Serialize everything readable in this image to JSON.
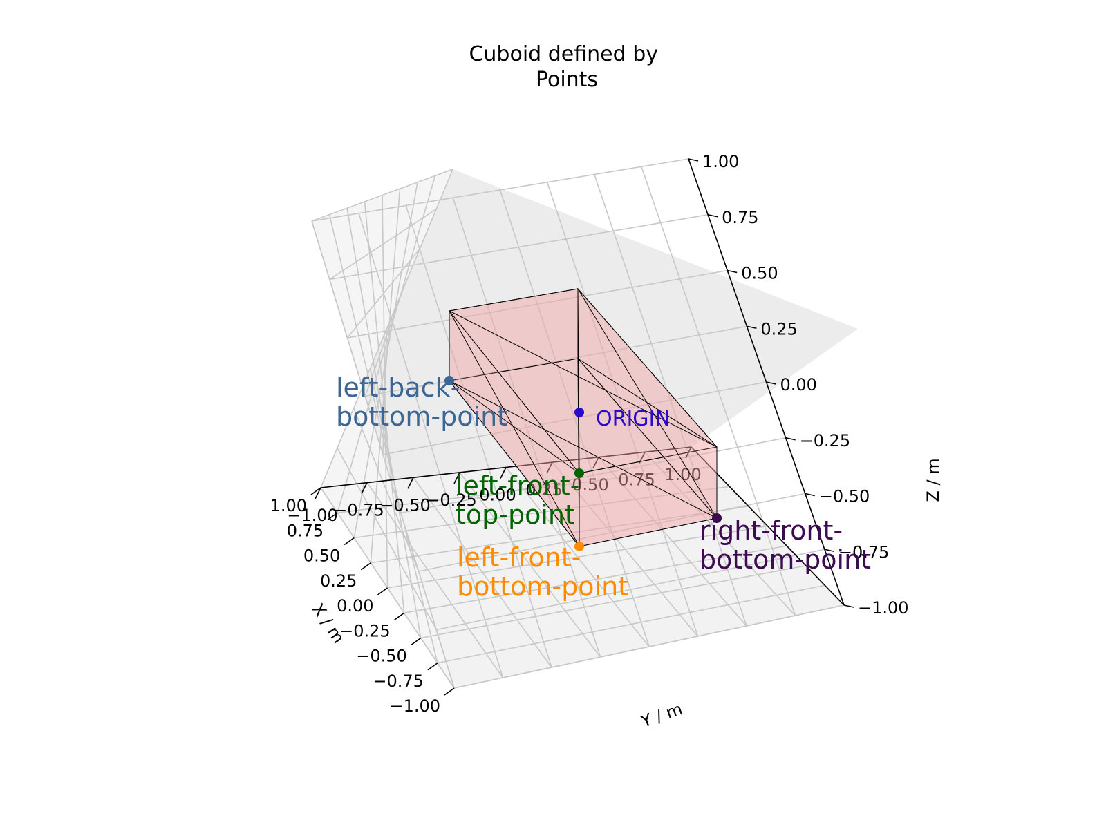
{
  "chart_data": {
    "type": "scatter",
    "title": "Cuboid defined by\nPoints",
    "xlabel": "X / m",
    "ylabel": "Y / m",
    "zlabel": "Z / m",
    "xlim": [
      -1.0,
      1.0
    ],
    "ylim": [
      -1.0,
      1.0
    ],
    "zlim": [
      -1.0,
      1.0
    ],
    "ticks": [
      "−1.00",
      "−0.75",
      "−0.50",
      "−0.25",
      "0.00",
      "0.25",
      "0.50",
      "0.75",
      "1.00"
    ],
    "grid": true,
    "cuboid_color": "#f4a6a6",
    "edge_color": "#000000",
    "points": [
      {
        "name": "left-back-bottom-point",
        "label": "left-back-\nbottom-point",
        "x": -1.0,
        "y": -0.5,
        "z": -0.25,
        "color": "#3b6695"
      },
      {
        "name": "left-front-top-point",
        "label": "left-front-\ntop-point",
        "x": 0.0,
        "y": -0.5,
        "z": 0.25,
        "color": "#006400"
      },
      {
        "name": "left-front-bottom-point",
        "label": "left-front-\nbottom-point",
        "x": 0.0,
        "y": -0.5,
        "z": -0.25,
        "color": "#ff8c00"
      },
      {
        "name": "right-front-bottom-point",
        "label": "right-front-\nbottom-point",
        "x": 0.0,
        "y": 0.5,
        "z": -0.25,
        "color": "#3e0a52"
      },
      {
        "name": "origin",
        "label": "ORIGIN",
        "x": 0.0,
        "y": 0.0,
        "z": 0.0,
        "color": "#2a0acf"
      }
    ]
  }
}
